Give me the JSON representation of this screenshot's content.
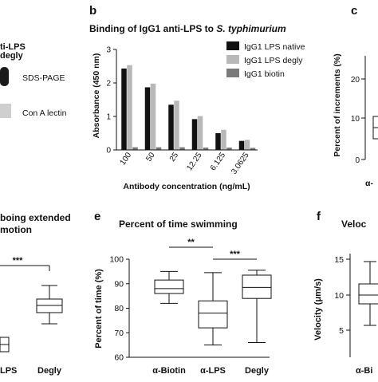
{
  "panel_a": {
    "header_fragment_1": "ti-LPS",
    "header_fragment_2": "degly",
    "band_label_1": "SDS-PAGE",
    "band_label_2": "Con A lectin"
  },
  "panel_c": {
    "letter": "c",
    "ylabel": "Percent of increments (%)",
    "ticks": [
      "20",
      "10",
      "0"
    ],
    "xtick_fragment": "α-"
  },
  "panel_d": {
    "title_line_1": "boing extended",
    "title_line_2": "motion",
    "significance": "***",
    "xticks": [
      "LPS",
      "Degly"
    ]
  },
  "panel_f": {
    "letter": "f",
    "title_fragment": "Veloc",
    "ylabel": "Velocity (μm/s)",
    "ticks": [
      "15",
      "10",
      "5"
    ],
    "xtick_fragment": "α-Bi"
  },
  "colors": {
    "native": "#111111",
    "degly": "#b8b8b8",
    "biotin": "#7a7a7a",
    "box_fill": "#ffffff",
    "axis": "#111111"
  },
  "chart_data": [
    {
      "id": "panel-b",
      "panel_letter": "b",
      "type": "bar",
      "title": "Binding of IgG1 anti-LPS to S. typhimurium",
      "title_plain": "Binding of IgG1 anti-LPS to ",
      "title_italic": "S. typhimurium",
      "xlabel": "Antibody concentration (ng/mL)",
      "ylabel": "Absorbance (450 nm)",
      "ylim": [
        0,
        3
      ],
      "yticks": [
        0,
        1,
        2,
        3
      ],
      "categories": [
        "100",
        "50",
        "25",
        "12.25",
        "6.125",
        "3.0625"
      ],
      "series": [
        {
          "name": "IgG1 LPS native",
          "values": [
            2.43,
            1.87,
            1.35,
            0.92,
            0.5,
            0.27
          ]
        },
        {
          "name": "IgG1 LPS degly",
          "values": [
            2.53,
            1.98,
            1.47,
            1.01,
            0.6,
            0.3
          ]
        },
        {
          "name": "IgG1 biotin",
          "values": [
            0.08,
            0.08,
            0.08,
            0.07,
            0.07,
            0.06
          ]
        }
      ],
      "legend": "top-right"
    },
    {
      "id": "panel-e",
      "panel_letter": "e",
      "type": "box",
      "title": "Percent of time swimming",
      "ylabel": "Percent of time (%)",
      "ylim": [
        60,
        100
      ],
      "yticks": [
        60,
        70,
        80,
        90,
        100
      ],
      "categories": [
        "α-Biotin",
        "α-LPS",
        "Degly"
      ],
      "boxes": [
        {
          "min": 82,
          "q1": 86,
          "median": 88,
          "q3": 91.5,
          "max": 95
        },
        {
          "min": 65,
          "q1": 72,
          "median": 78,
          "q3": 83,
          "max": 94.5
        },
        {
          "min": 66,
          "q1": 84,
          "median": 88.5,
          "q3": 93.5,
          "max": 95.5
        }
      ],
      "significance": [
        {
          "from": 0,
          "to": 1,
          "label": "**"
        },
        {
          "from": 1,
          "to": 2,
          "label": "***"
        }
      ]
    }
  ]
}
